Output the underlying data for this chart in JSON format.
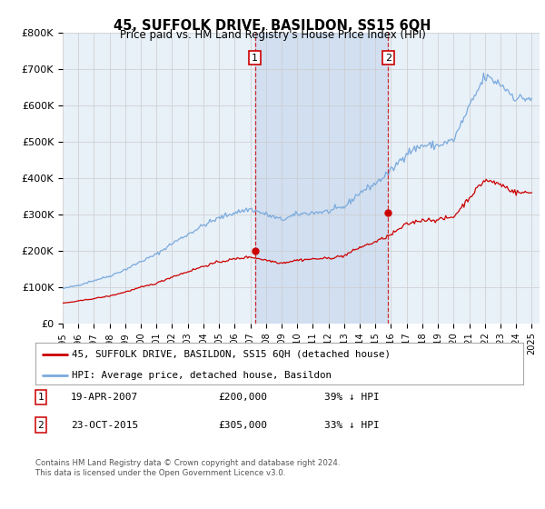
{
  "title": "45, SUFFOLK DRIVE, BASILDON, SS15 6QH",
  "subtitle": "Price paid vs. HM Land Registry's House Price Index (HPI)",
  "ylim": [
    0,
    800000
  ],
  "yticks": [
    0,
    100000,
    200000,
    300000,
    400000,
    500000,
    600000,
    700000,
    800000
  ],
  "ytick_labels": [
    "£0",
    "£100K",
    "£200K",
    "£300K",
    "£400K",
    "£500K",
    "£600K",
    "£700K",
    "£800K"
  ],
  "xlim_start": 1995.0,
  "xlim_end": 2025.5,
  "background_color": "#ffffff",
  "plot_bg_color": "#e8f0f8",
  "grid_color": "#cccccc",
  "hpi_color": "#7aaadd",
  "price_color": "#cc0000",
  "sale1_x": 2007.3,
  "sale1_y": 200000,
  "sale2_x": 2015.81,
  "sale2_y": 305000,
  "shade_color": "#c8d8ee",
  "legend_label_price": "45, SUFFOLK DRIVE, BASILDON, SS15 6QH (detached house)",
  "legend_label_hpi": "HPI: Average price, detached house, Basildon",
  "footer1": "Contains HM Land Registry data © Crown copyright and database right 2024.",
  "footer2": "This data is licensed under the Open Government Licence v3.0.",
  "table_row1_num": "1",
  "table_row1_date": "19-APR-2007",
  "table_row1_price": "£200,000",
  "table_row1_hpi": "39% ↓ HPI",
  "table_row2_num": "2",
  "table_row2_date": "23-OCT-2015",
  "table_row2_price": "£305,000",
  "table_row2_hpi": "33% ↓ HPI"
}
